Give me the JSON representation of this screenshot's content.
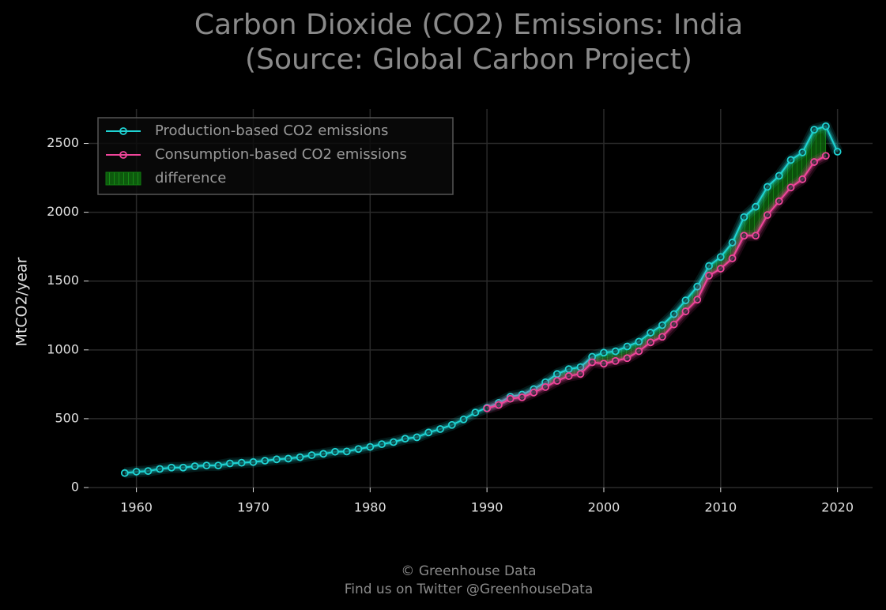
{
  "chart_data": {
    "type": "line",
    "title": "Carbon Dioxide (CO2) Emissions: India",
    "subtitle": "(Source: Global Carbon Project)",
    "y_label": "MtCO2/year",
    "footer": [
      "© Greenhouse Data",
      "Find us on Twitter @GreenhouseData"
    ],
    "x": [
      1959,
      1960,
      1961,
      1962,
      1963,
      1964,
      1965,
      1966,
      1967,
      1968,
      1969,
      1970,
      1971,
      1972,
      1973,
      1974,
      1975,
      1976,
      1977,
      1978,
      1979,
      1980,
      1981,
      1982,
      1983,
      1984,
      1985,
      1986,
      1987,
      1988,
      1989,
      1990,
      1991,
      1992,
      1993,
      1994,
      1995,
      1996,
      1997,
      1998,
      1999,
      2000,
      2001,
      2002,
      2003,
      2004,
      2005,
      2006,
      2007,
      2008,
      2009,
      2010,
      2011,
      2012,
      2013,
      2014,
      2015,
      2016,
      2017,
      2018,
      2019,
      2020
    ],
    "series": [
      {
        "name": "Production-based CO2 emissions",
        "color": "#1fd3d3",
        "values": [
          105,
          115,
          120,
          135,
          145,
          145,
          155,
          160,
          160,
          175,
          180,
          185,
          195,
          205,
          210,
          220,
          235,
          245,
          260,
          262,
          280,
          295,
          315,
          330,
          355,
          365,
          400,
          425,
          455,
          495,
          545,
          580,
          615,
          660,
          675,
          715,
          765,
          825,
          860,
          875,
          950,
          980,
          990,
          1025,
          1060,
          1125,
          1180,
          1260,
          1360,
          1460,
          1610,
          1675,
          1780,
          1965,
          2040,
          2185,
          2265,
          2380,
          2435,
          2600,
          2625,
          2440
        ]
      },
      {
        "name": "Consumption-based CO2 emissions",
        "color": "#f0459a",
        "values": [
          null,
          null,
          null,
          null,
          null,
          null,
          null,
          null,
          null,
          null,
          null,
          null,
          null,
          null,
          null,
          null,
          null,
          null,
          null,
          null,
          null,
          null,
          null,
          null,
          null,
          null,
          null,
          null,
          null,
          null,
          null,
          575,
          600,
          645,
          655,
          690,
          730,
          775,
          810,
          825,
          910,
          900,
          920,
          940,
          990,
          1055,
          1095,
          1185,
          1280,
          1365,
          1540,
          1590,
          1665,
          1830,
          1830,
          1980,
          2080,
          2180,
          2240,
          2365,
          2410,
          null
        ]
      }
    ],
    "difference": {
      "name": "difference",
      "color": "#0f7a0f"
    },
    "xlim": [
      1955.9,
      2023.0
    ],
    "ylim": [
      0,
      2750
    ],
    "xticks": [
      1960,
      1970,
      1980,
      1990,
      2000,
      2010,
      2020
    ],
    "yticks": [
      0,
      500,
      1000,
      1500,
      2000,
      2500
    ],
    "grid": true,
    "legend": "upper left"
  }
}
